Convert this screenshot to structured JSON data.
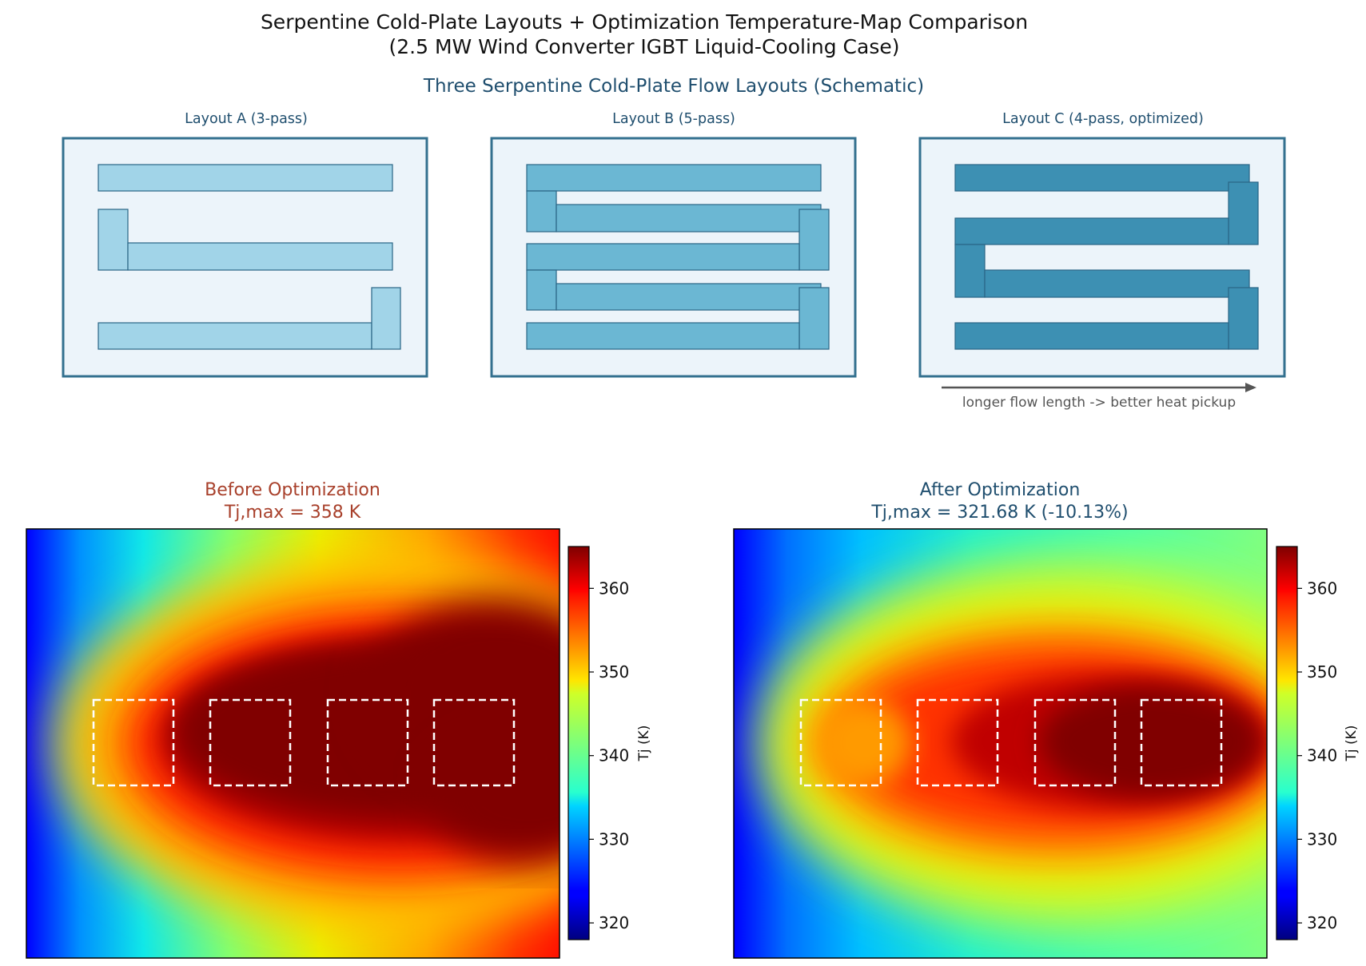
{
  "figure": {
    "title_line1": "Serpentine Cold-Plate Layouts  +  Optimization Temperature-Map Comparison",
    "title_line2": "(2.5 MW Wind Converter IGBT Liquid-Cooling Case)"
  },
  "schematic": {
    "title": "Three Serpentine Cold-Plate Flow Layouts (Schematic)",
    "annotation": "longer flow length -> better heat pickup",
    "layouts": [
      {
        "title": "Layout A  (3-pass)",
        "passes": 3,
        "fill": "#a1d4e8"
      },
      {
        "title": "Layout B  (5-pass)",
        "passes": 5,
        "fill": "#6bb7d3"
      },
      {
        "title": "Layout C  (4-pass, optimized)",
        "passes": 4,
        "fill": "#3d90b3"
      }
    ],
    "colors": {
      "plate_fill": "#ecf4fa",
      "plate_border": "#33708f",
      "channel_border": "#2a6585",
      "arrow": "#555555"
    }
  },
  "chart_data": [
    {
      "type": "heatmap",
      "title_line1": "Before Optimization",
      "title_line2": "Tj,max = 358 K",
      "title_color": "#a8402b",
      "colormap": "jet",
      "colorbar_label": "Tj (K)",
      "vmin": 318,
      "vmax": 365,
      "colorbar_ticks": [
        360,
        350,
        340,
        330,
        320
      ],
      "tj_max_K": 358,
      "chip_count": 4
    },
    {
      "type": "heatmap",
      "title_line1": "After Optimization",
      "title_line2": "Tj,max = 321.68 K  (-10.13%)",
      "title_color": "#1f4e6e",
      "colormap": "jet",
      "colorbar_label": "Tj (K)",
      "vmin": 318,
      "vmax": 365,
      "colorbar_ticks": [
        360,
        350,
        340,
        330,
        320
      ],
      "tj_max_K": 321.68,
      "reduction_pct": -10.13,
      "chip_count": 4
    }
  ]
}
